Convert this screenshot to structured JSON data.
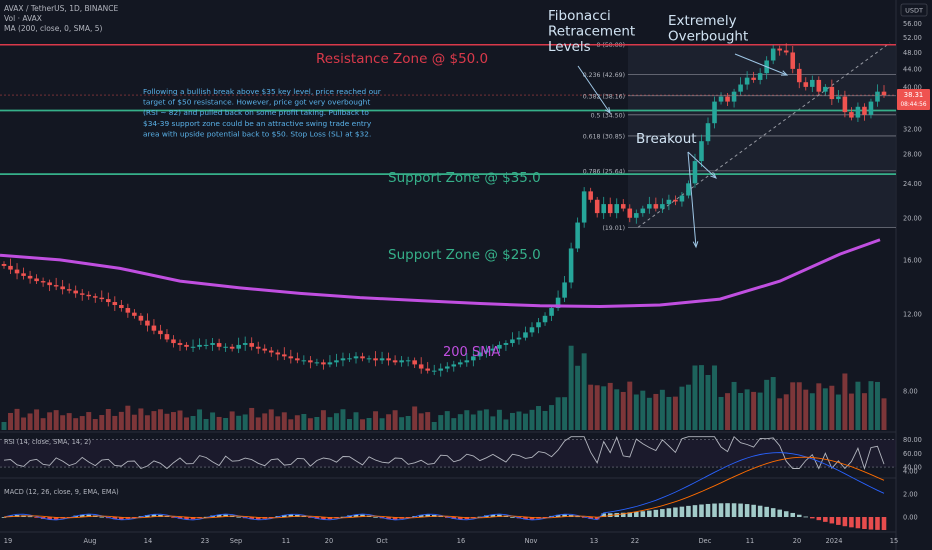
{
  "header": {
    "symbol_line": "AVAX / TetherUS, 1D, BINANCE",
    "vol_line": "Vol · AVAX",
    "ma_line": "MA (200, close, 0, SMA, 5)",
    "currency": "USDT"
  },
  "annotations": {
    "fib_title": [
      "Fibonacci",
      "Retracement",
      "Levels"
    ],
    "overbought": [
      "Extremely",
      "Overbought"
    ],
    "breakout": "Breakout",
    "resistance": "Resistance Zone @ $50.0",
    "support1": "Support Zone @ $35.0",
    "support2": "Support Zone @ $25.0",
    "sma_label": "200 SMA",
    "commentary": [
      "Following a bullish break above $35 key level, price reached our",
      "target of $50 resistance. However, price got very overbought",
      "(RSI ~ 82) and pulled back on some profit taking. Pullback to",
      "$34-39 support zone could be an attractive swing trade entry",
      "area with upside potential back to $50. Stop Loss (SL) at $32."
    ]
  },
  "colors": {
    "background": "#131722",
    "resistance": "#d9394a",
    "support": "#36b08a",
    "sma": "#c04fe0",
    "candle_up": "#26a69a",
    "candle_down": "#ef5350",
    "fib_line": "#787b86",
    "annotation_text": "#5ab1e8",
    "rsi": "#b2b5be",
    "macd": "#2962ff",
    "signal": "#ff6d00"
  },
  "chart_data": [
    {
      "type": "candlestick",
      "scale": "log",
      "price_ticks": [
        56,
        52,
        48,
        44,
        40,
        36,
        32,
        28,
        24,
        20,
        16,
        12,
        8
      ],
      "price_tick_labels": [
        "56.00",
        "52.00",
        "48.00",
        "44.00",
        "40.00",
        "36.00",
        "32.00",
        "28.00",
        "24.00",
        "20.00",
        "16.00",
        "12.00",
        "8.00"
      ],
      "last_price": {
        "value": 38.31,
        "label": "38.31",
        "countdown": "08:44:56"
      },
      "x_labels": [
        "19",
        "Aug",
        "14",
        "23",
        "Sep",
        "11",
        "20",
        "Oct",
        "16",
        "Nov",
        "13",
        "22",
        "Dec",
        "11",
        "20",
        "2024",
        "15"
      ],
      "levels": {
        "resistance": 50.0,
        "support_1": 35.0,
        "support_2": 25.0
      },
      "fib_levels": [
        {
          "ratio": "0",
          "price": 50.0,
          "label": "0 (50.00)"
        },
        {
          "ratio": "0.236",
          "price": 42.69,
          "label": "0.236 (42.69)"
        },
        {
          "ratio": "0.382",
          "price": 38.16,
          "label": "0.382 (38.16)"
        },
        {
          "ratio": "0.5",
          "price": 34.5,
          "label": "0.5 (34.50)"
        },
        {
          "ratio": "0.618",
          "price": 30.85,
          "label": "0.618 (30.85)"
        },
        {
          "ratio": "0.786",
          "price": 25.64,
          "label": "0.786 (25.64)"
        },
        {
          "ratio": "1",
          "price": 19.01,
          "label": "(19.01)"
        }
      ],
      "sma200_points": [
        [
          0,
          16.4
        ],
        [
          60,
          16.0
        ],
        [
          120,
          15.3
        ],
        [
          180,
          14.3
        ],
        [
          240,
          13.8
        ],
        [
          300,
          13.4
        ],
        [
          360,
          13.1
        ],
        [
          420,
          12.9
        ],
        [
          480,
          12.7
        ],
        [
          540,
          12.55
        ],
        [
          600,
          12.5
        ],
        [
          660,
          12.6
        ],
        [
          720,
          13.0
        ],
        [
          780,
          14.3
        ],
        [
          840,
          16.5
        ],
        [
          880,
          17.8
        ]
      ],
      "closes": [
        15.5,
        15.2,
        14.9,
        14.7,
        14.5,
        14.3,
        14.2,
        14.0,
        13.9,
        13.7,
        13.6,
        13.4,
        13.3,
        13.2,
        13.1,
        13.0,
        12.8,
        12.6,
        12.4,
        12.1,
        11.9,
        11.6,
        11.3,
        11.0,
        10.8,
        10.5,
        10.3,
        10.2,
        10.1,
        10.1,
        10.2,
        10.2,
        10.3,
        10.1,
        10.1,
        10.0,
        10.2,
        10.3,
        10.1,
        10.0,
        9.9,
        9.8,
        9.7,
        9.6,
        9.5,
        9.4,
        9.4,
        9.3,
        9.3,
        9.2,
        9.3,
        9.4,
        9.5,
        9.5,
        9.6,
        9.5,
        9.5,
        9.4,
        9.5,
        9.4,
        9.3,
        9.4,
        9.4,
        9.2,
        9.0,
        8.9,
        8.9,
        9.0,
        9.1,
        9.2,
        9.3,
        9.4,
        9.6,
        9.8,
        9.9,
        10.0,
        10.2,
        10.3,
        10.5,
        10.6,
        10.9,
        11.2,
        11.5,
        11.9,
        12.4,
        13.1,
        14.2,
        17.0,
        19.5,
        23.0,
        22.0,
        20.5,
        21.5,
        20.5,
        21.5,
        21.0,
        20.0,
        20.5,
        21.0,
        21.5,
        21.0,
        21.5,
        22.0,
        21.8,
        22.5,
        24.0,
        27.0,
        30.0,
        33.0,
        37.0,
        38.0,
        37.0,
        39.0,
        40.5,
        42.0,
        41.5,
        43.0,
        46.0,
        49.0,
        48.5,
        48.0,
        44.0,
        41.0,
        40.0,
        41.5,
        39.0,
        40.0,
        37.5,
        38.0,
        35.0,
        34.0,
        36.0,
        34.5,
        37.0,
        39.0,
        38.3
      ],
      "volume_ticks": [],
      "rsi": {
        "label": "RSI (14, close, SMA, 14, 2)",
        "ticks": [
          80,
          60,
          40
        ],
        "tick_labels": [
          "80.00",
          "60.00",
          "40.00"
        ]
      },
      "macd": {
        "label": "MACD (12, 26, close, 9, EMA, EMA)",
        "ticks": [
          4,
          2,
          0
        ],
        "tick_labels": [
          "4.00",
          "2.00",
          "0.00"
        ]
      }
    }
  ]
}
